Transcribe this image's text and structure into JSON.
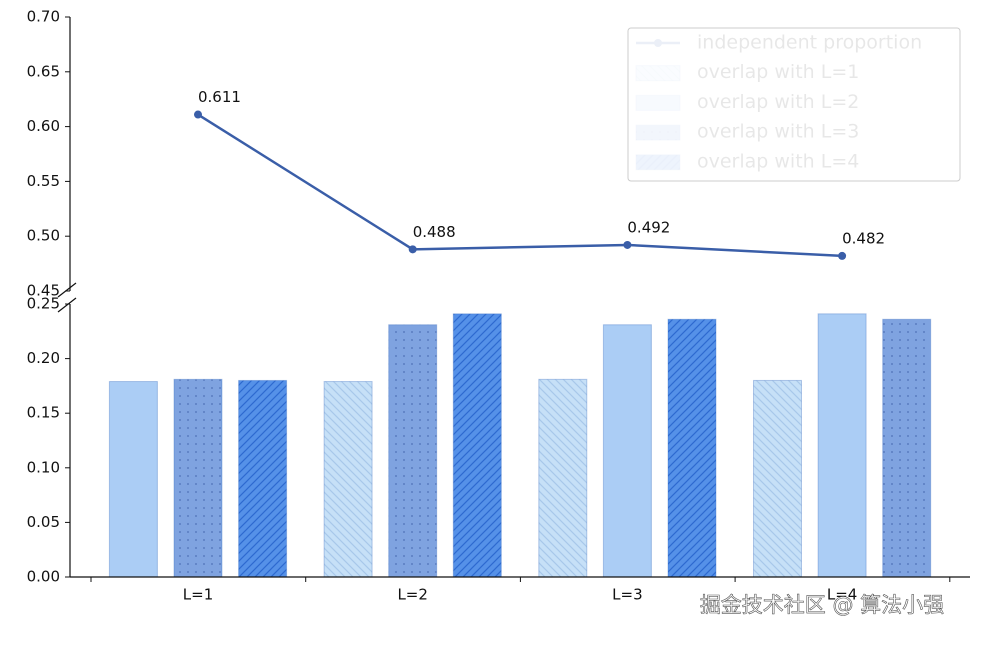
{
  "chart_data": [
    {
      "type": "line",
      "series": [
        {
          "name": "independent proportion",
          "color": "#3a5ea8",
          "values": [
            0.611,
            0.488,
            0.492,
            0.482
          ]
        }
      ],
      "ylim": [
        0.45,
        0.7
      ],
      "yticks": [
        0.45,
        {
          "value": 0.5,
          "label": "0.50"
        },
        0.55,
        {
          "value": 0.6,
          "label": "0.60"
        },
        0.65,
        {
          "value": 0.7,
          "label": "0.70"
        }
      ],
      "legend": "upper right"
    },
    {
      "type": "bar",
      "categories": [
        "L=1",
        "L=2",
        "L=3",
        "L=4"
      ],
      "series": [
        {
          "name": "overlap with L=1",
          "color": "#c6e0f7",
          "hatch": "\\\\",
          "values": [
            null,
            0.179,
            0.181,
            0.18
          ]
        },
        {
          "name": "overlap with L=2",
          "color": "#abcdf5",
          "values": [
            0.179,
            null,
            0.231,
            0.241
          ]
        },
        {
          "name": "overlap with L=3",
          "color": "#7fa3e0",
          "hatch": "..",
          "values": [
            0.181,
            0.231,
            null,
            0.236
          ]
        },
        {
          "name": "overlap with L=4",
          "color": "#5591e8",
          "hatch": "//",
          "values": [
            0.18,
            0.241,
            0.236,
            null
          ]
        }
      ],
      "ylim": [
        0,
        0.25
      ],
      "yticks": [
        {
          "value": 0,
          "label": "0.00"
        },
        0.05,
        {
          "value": 0.1,
          "label": "0.10"
        },
        0.15,
        {
          "value": 0.2,
          "label": "0.20"
        },
        0.25
      ]
    }
  ],
  "watermark": "掘金技术社区 @ 算法小强"
}
